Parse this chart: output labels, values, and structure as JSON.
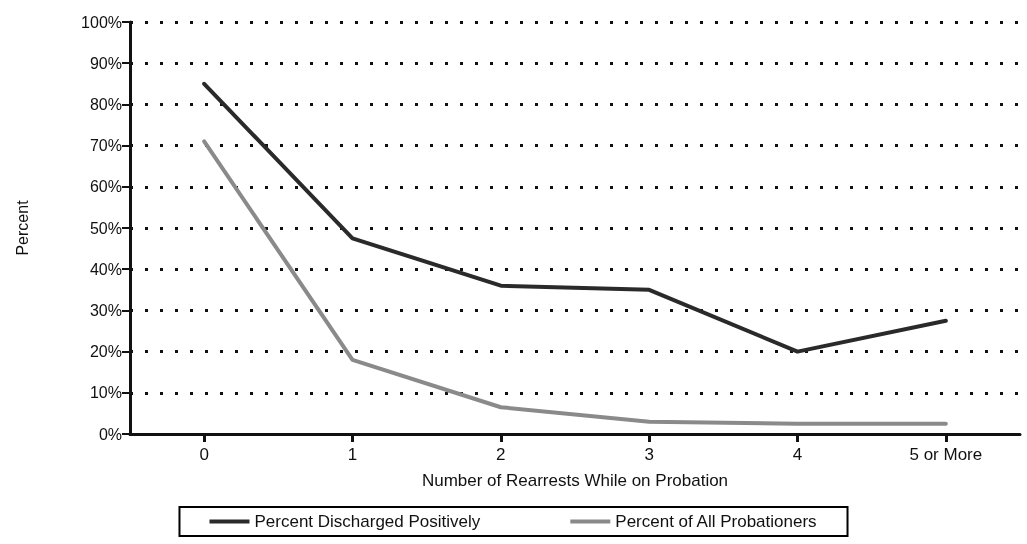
{
  "chart_data": {
    "type": "line",
    "xlabel": "Number of Rearrests While on Probation",
    "ylabel": "Percent",
    "categories": [
      "0",
      "1",
      "2",
      "3",
      "4",
      "5 or More"
    ],
    "series": [
      {
        "name": "Percent Discharged Positively",
        "color": "#2a2a2a",
        "values": [
          85,
          47.5,
          36,
          35,
          20,
          27.5
        ]
      },
      {
        "name": "Percent of All Probationers",
        "color": "#8a8a8a",
        "values": [
          71,
          18,
          6.5,
          3,
          2.5,
          2.5
        ]
      }
    ],
    "ylim": [
      0,
      100
    ],
    "yticks": [
      {
        "value": 0,
        "label": "0%"
      },
      {
        "value": 10,
        "label": "10%"
      },
      {
        "value": 20,
        "label": "20%"
      },
      {
        "value": 30,
        "label": "30%"
      },
      {
        "value": 40,
        "label": "40%"
      },
      {
        "value": 50,
        "label": "50%"
      },
      {
        "value": 60,
        "label": "60%"
      },
      {
        "value": 70,
        "label": "70%"
      },
      {
        "value": 80,
        "label": "80%"
      },
      {
        "value": 90,
        "label": "90%"
      },
      {
        "value": 100,
        "label": "100%"
      }
    ],
    "grid": "y",
    "legend": "bottom",
    "marker": "none",
    "line_style": "solid"
  }
}
